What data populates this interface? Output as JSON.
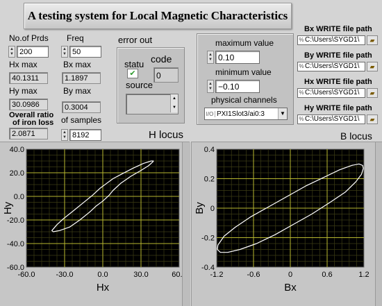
{
  "title": "A testing system for Local Magnetic Characteristics",
  "left_controls": {
    "no_prds_label": "No.of Prds",
    "no_prds_value": "200",
    "hx_max_label": "Hx max",
    "hx_max_value": "40.1311",
    "hy_max_label": "Hy max",
    "hy_max_value": "30.0986",
    "overall_ratio_label_1": "Overall ratio",
    "overall_ratio_label_2": "of iron loss",
    "overall_ratio_value": "2.0871"
  },
  "mid_controls": {
    "freq_label": "Freq",
    "freq_value": "50",
    "bx_max_label": "Bx max",
    "bx_max_value": "1.1897",
    "by_max_label": "By max",
    "by_max_value": "0.3004",
    "samples_label": "of samples",
    "samples_value": "8192"
  },
  "error_out": {
    "label": "error out",
    "status_label": "statu",
    "code_label": "code",
    "code_value": "0",
    "source_label": "source",
    "status_color": "#2e9a2e"
  },
  "range_panel": {
    "max_label": "maximum value",
    "max_value": "0.10",
    "min_label": "minimum value",
    "min_value": "−0.10",
    "channels_label": "physical channels",
    "channels_value": "PXI1Slot3/ai0:3"
  },
  "file_paths": [
    {
      "label": "Bx WRITE file path",
      "value": "C:\\Users\\SYGD1\\"
    },
    {
      "label": "By WRITE file path",
      "value": "C:\\Users\\SYGD1\\"
    },
    {
      "label": "Hx WRITE file path",
      "value": "C:\\Users\\SYGD1\\"
    },
    {
      "label": "Hy WRITE file path",
      "value": "C:\\Users\\SYGD1\\"
    }
  ],
  "chart_data": [
    {
      "type": "line",
      "title": "H locus",
      "xlabel": "Hx",
      "ylabel": "Hy",
      "xlim": [
        -60,
        60
      ],
      "ylim": [
        -60,
        40
      ],
      "x_ticks": [
        "-60.0",
        "-30.0",
        "0.0",
        "30.0",
        "60.0"
      ],
      "y_ticks": [
        "40.0",
        "20.0",
        "0.0",
        "-20.0",
        "-40.0",
        "-60.0"
      ],
      "grid": true,
      "series": [
        {
          "x": [
            40,
            38,
            32,
            24,
            15,
            8,
            3,
            -2,
            -8,
            -16,
            -24,
            -31,
            -36,
            -40,
            -39,
            -34,
            -26,
            -18,
            -10,
            -5,
            0,
            5,
            8,
            14,
            22,
            30,
            36,
            40
          ],
          "y": [
            30,
            30,
            28,
            24,
            19,
            15,
            11,
            7,
            1,
            -6,
            -13,
            -19,
            -24,
            -29,
            -30,
            -29,
            -26,
            -20,
            -13,
            -8,
            -4,
            1,
            5,
            11,
            17,
            22,
            26,
            30
          ]
        }
      ]
    },
    {
      "type": "line",
      "title": "B locus",
      "xlabel": "Bx",
      "ylabel": "By",
      "xlim": [
        -1.2,
        1.2
      ],
      "ylim": [
        -0.4,
        0.4
      ],
      "x_ticks": [
        "-1.2",
        "-0.6",
        "0",
        "0.6",
        "1.2"
      ],
      "y_ticks": [
        "0.4",
        "0.2",
        "0",
        "-0.2",
        "-0.4"
      ],
      "grid": true,
      "series": [
        {
          "x": [
            1.19,
            1.18,
            1.12,
            1.0,
            0.8,
            0.55,
            0.25,
            -0.05,
            -0.35,
            -0.65,
            -0.9,
            -1.08,
            -1.18,
            -1.19,
            -1.14,
            -1.02,
            -0.82,
            -0.55,
            -0.25,
            0.05,
            0.35,
            0.65,
            0.9,
            1.07,
            1.16,
            1.19
          ],
          "y": [
            0.27,
            0.29,
            0.3,
            0.29,
            0.26,
            0.21,
            0.15,
            0.08,
            0.01,
            -0.06,
            -0.13,
            -0.19,
            -0.25,
            -0.28,
            -0.3,
            -0.3,
            -0.28,
            -0.24,
            -0.18,
            -0.11,
            -0.04,
            0.04,
            0.11,
            0.18,
            0.23,
            0.27
          ]
        }
      ]
    }
  ]
}
